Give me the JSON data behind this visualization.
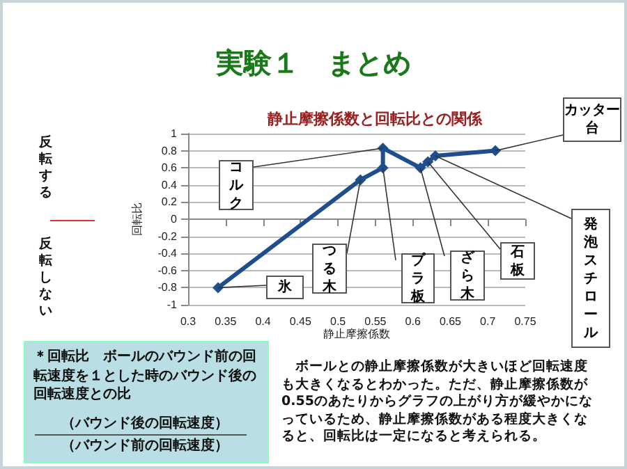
{
  "chart_data": {
    "type": "line",
    "title": "静止摩擦係数と回転比との関係",
    "xlabel": "静止摩擦係数",
    "ylabel": "回転比",
    "x": [
      0.34,
      0.53,
      0.56,
      0.56,
      0.61,
      0.62,
      0.63,
      0.71
    ],
    "series": [
      {
        "color": "#1f4e8c",
        "values": [
          -0.8,
          0.46,
          0.6,
          0.83,
          0.6,
          0.67,
          0.74,
          0.8
        ]
      }
    ],
    "xlim": [
      0.3,
      0.75
    ],
    "xticks": [
      0.3,
      0.35,
      0.4,
      0.45,
      0.5,
      0.55,
      0.6,
      0.65,
      0.7,
      0.75
    ],
    "ylim": [
      -1,
      1
    ],
    "yticks": [
      -1,
      -0.8,
      -0.6,
      -0.4,
      -0.2,
      0,
      0.2,
      0.4,
      0.6,
      0.8,
      1
    ],
    "grid": "y",
    "marker": "diamond",
    "line_style": "solid",
    "annotations": [
      "実験１　まとめ",
      "反転する",
      "反転しない",
      "＊回転比　ボールのバウンド前の回転速度を１とした時のバウンド後の回転速度との比",
      "（バウンド後の回転速度）",
      "（バウンド前の回転速度）",
      "　ボールとの静止摩擦係数が大きいほど回転速度も大きくなるとわかった。ただ、静止摩擦係数が0.55のあたりからグラフの上がり方が緩やかになっているため、静止摩擦係数がある程度大きくなると、回転比は一定になると考えられる。",
      {
        "text": "氷",
        "x": 0.34,
        "y": -0.8
      },
      {
        "text": "つる木",
        "x": 0.53,
        "y": 0.46
      },
      {
        "text": "プラ板",
        "x": 0.56,
        "y": 0.6
      },
      {
        "text": "コルク",
        "x": 0.56,
        "y": 0.83
      },
      {
        "text": "ざら木",
        "x": 0.61,
        "y": 0.6
      },
      {
        "text": "石板",
        "x": 0.62,
        "y": 0.67
      },
      {
        "text": "発泡スチロール",
        "x": 0.63,
        "y": 0.74
      },
      {
        "text": "カッター台",
        "x": 0.71,
        "y": 0.8
      }
    ]
  }
}
